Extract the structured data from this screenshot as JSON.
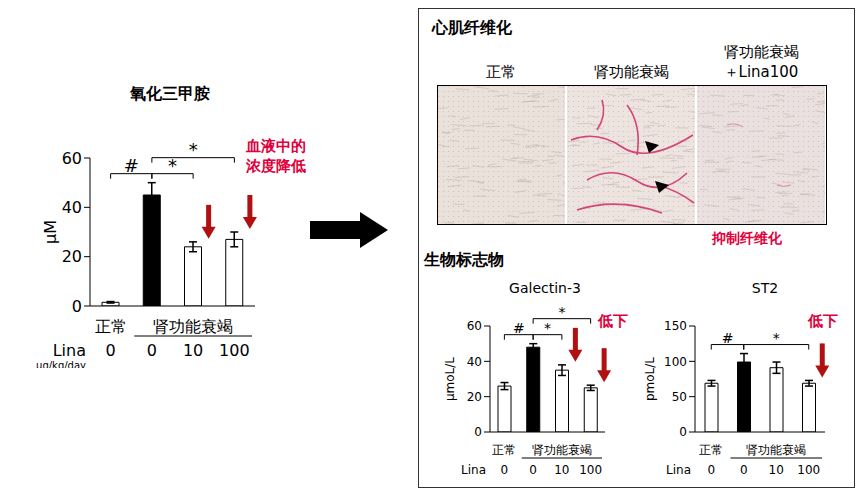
{
  "chart_data": [
    {
      "type": "bar",
      "title": "氧化三甲胺",
      "y_label": "μM",
      "categories": [
        "0",
        "0",
        "10",
        "100"
      ],
      "group": [
        "正常",
        "肾功能衰竭",
        "肾功能衰竭",
        "肾功能衰竭"
      ],
      "dose_label": "Lina",
      "dose_unit": "μg/kg/day",
      "values": [
        1.5,
        45,
        24,
        27
      ],
      "errors": [
        0.3,
        5,
        2,
        3
      ],
      "colors": [
        "#ffffff",
        "#000000",
        "#ffffff",
        "#ffffff"
      ],
      "ylim": [
        0,
        60
      ],
      "yticks": [
        0,
        20,
        40,
        60
      ],
      "significance": [
        {
          "from": 0,
          "to": 1,
          "label": "#"
        },
        {
          "from": 1,
          "to": 2,
          "label": "*"
        },
        {
          "from": 1,
          "to": 3,
          "label": "*"
        }
      ],
      "annotation": [
        "血液中的",
        "浓度降低"
      ],
      "decrease_arrows": [
        false,
        false,
        true,
        true
      ]
    },
    {
      "type": "bar",
      "title": "Galectin-3",
      "y_label": "μmoL/L",
      "categories": [
        "0",
        "0",
        "10",
        "100"
      ],
      "group": [
        "正常",
        "肾功能衰竭",
        "肾功能衰竭",
        "肾功能衰竭"
      ],
      "dose_label": "Lina",
      "values": [
        26,
        48,
        35,
        25
      ],
      "errors": [
        2,
        2,
        3,
        1.5
      ],
      "colors": [
        "#ffffff",
        "#000000",
        "#ffffff",
        "#ffffff"
      ],
      "ylim": [
        0,
        60
      ],
      "yticks": [
        0,
        20,
        40,
        60
      ],
      "significance": [
        {
          "from": 0,
          "to": 1,
          "label": "#"
        },
        {
          "from": 1,
          "to": 2,
          "label": "*"
        },
        {
          "from": 1,
          "to": 3,
          "label": "*"
        }
      ],
      "annotation": [
        "低下"
      ],
      "decrease_arrows": [
        false,
        false,
        true,
        true
      ]
    },
    {
      "type": "bar",
      "title": "ST2",
      "y_label": "pmoL/L",
      "categories": [
        "0",
        "0",
        "10",
        "100"
      ],
      "group": [
        "正常",
        "肾功能衰竭",
        "肾功能衰竭",
        "肾功能衰竭"
      ],
      "dose_label": "Lina",
      "values": [
        69,
        99,
        91,
        69
      ],
      "errors": [
        4,
        12,
        8,
        4
      ],
      "colors": [
        "#ffffff",
        "#000000",
        "#ffffff",
        "#ffffff"
      ],
      "ylim": [
        0,
        150
      ],
      "yticks": [
        0,
        50,
        100,
        150
      ],
      "significance": [
        {
          "from": 0,
          "to": 1,
          "label": "#"
        },
        {
          "from": 1,
          "to": 3,
          "label": "*"
        }
      ],
      "annotation": [
        "低下"
      ],
      "decrease_arrows": [
        false,
        false,
        false,
        true
      ]
    }
  ],
  "fibrosis": {
    "title": "心肌纤维化",
    "columns": [
      [
        "正常"
      ],
      [
        "肾功能衰竭"
      ],
      [
        "肾功能衰竭",
        "＋Lina100"
      ]
    ],
    "note": "抑制纤维化"
  },
  "biomarker_title": "生物标志物"
}
